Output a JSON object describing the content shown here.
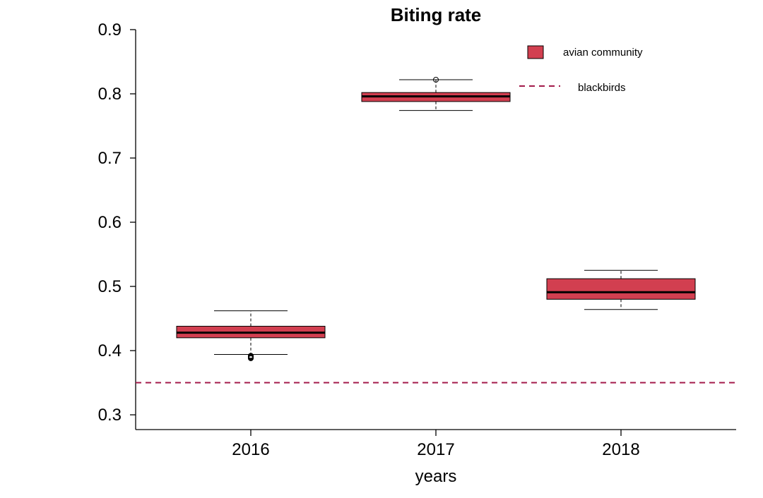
{
  "chart_data": {
    "type": "box",
    "title": "Biting rate",
    "xlabel": "years",
    "ylabel": "",
    "ylim": [
      0.277,
      0.9
    ],
    "yticks": [
      0.3,
      0.4,
      0.5,
      0.6,
      0.7,
      0.8,
      0.9
    ],
    "ytick_labels": [
      "0.3",
      "0.4",
      "0.5",
      "0.6",
      "0.7",
      "0.8",
      "0.9"
    ],
    "categories": [
      "2016",
      "2017",
      "2018"
    ],
    "series": [
      {
        "name": "avian community",
        "color": "#D23F50",
        "boxes": [
          {
            "category": "2016",
            "whisker_low": 0.394,
            "q1": 0.42,
            "median": 0.428,
            "q3": 0.438,
            "whisker_high": 0.462,
            "outliers": [
              0.388,
              0.389,
              0.39,
              0.391,
              0.392
            ]
          },
          {
            "category": "2017",
            "whisker_low": 0.774,
            "q1": 0.788,
            "median": 0.796,
            "q3": 0.802,
            "whisker_high": 0.822,
            "outliers": [
              0.822
            ]
          },
          {
            "category": "2018",
            "whisker_low": 0.464,
            "q1": 0.48,
            "median": 0.491,
            "q3": 0.512,
            "whisker_high": 0.525,
            "outliers": []
          }
        ]
      }
    ],
    "reference_lines": [
      {
        "name": "blackbirds",
        "y": 0.35,
        "color": "#A31A4A",
        "style": "dashed"
      }
    ],
    "legend": {
      "position": "top-right",
      "items": [
        {
          "label": "avian community",
          "kind": "box",
          "color": "#D23F50"
        },
        {
          "label": "blackbirds",
          "kind": "dashed-line",
          "color": "#A31A4A"
        }
      ]
    },
    "grid": false
  }
}
